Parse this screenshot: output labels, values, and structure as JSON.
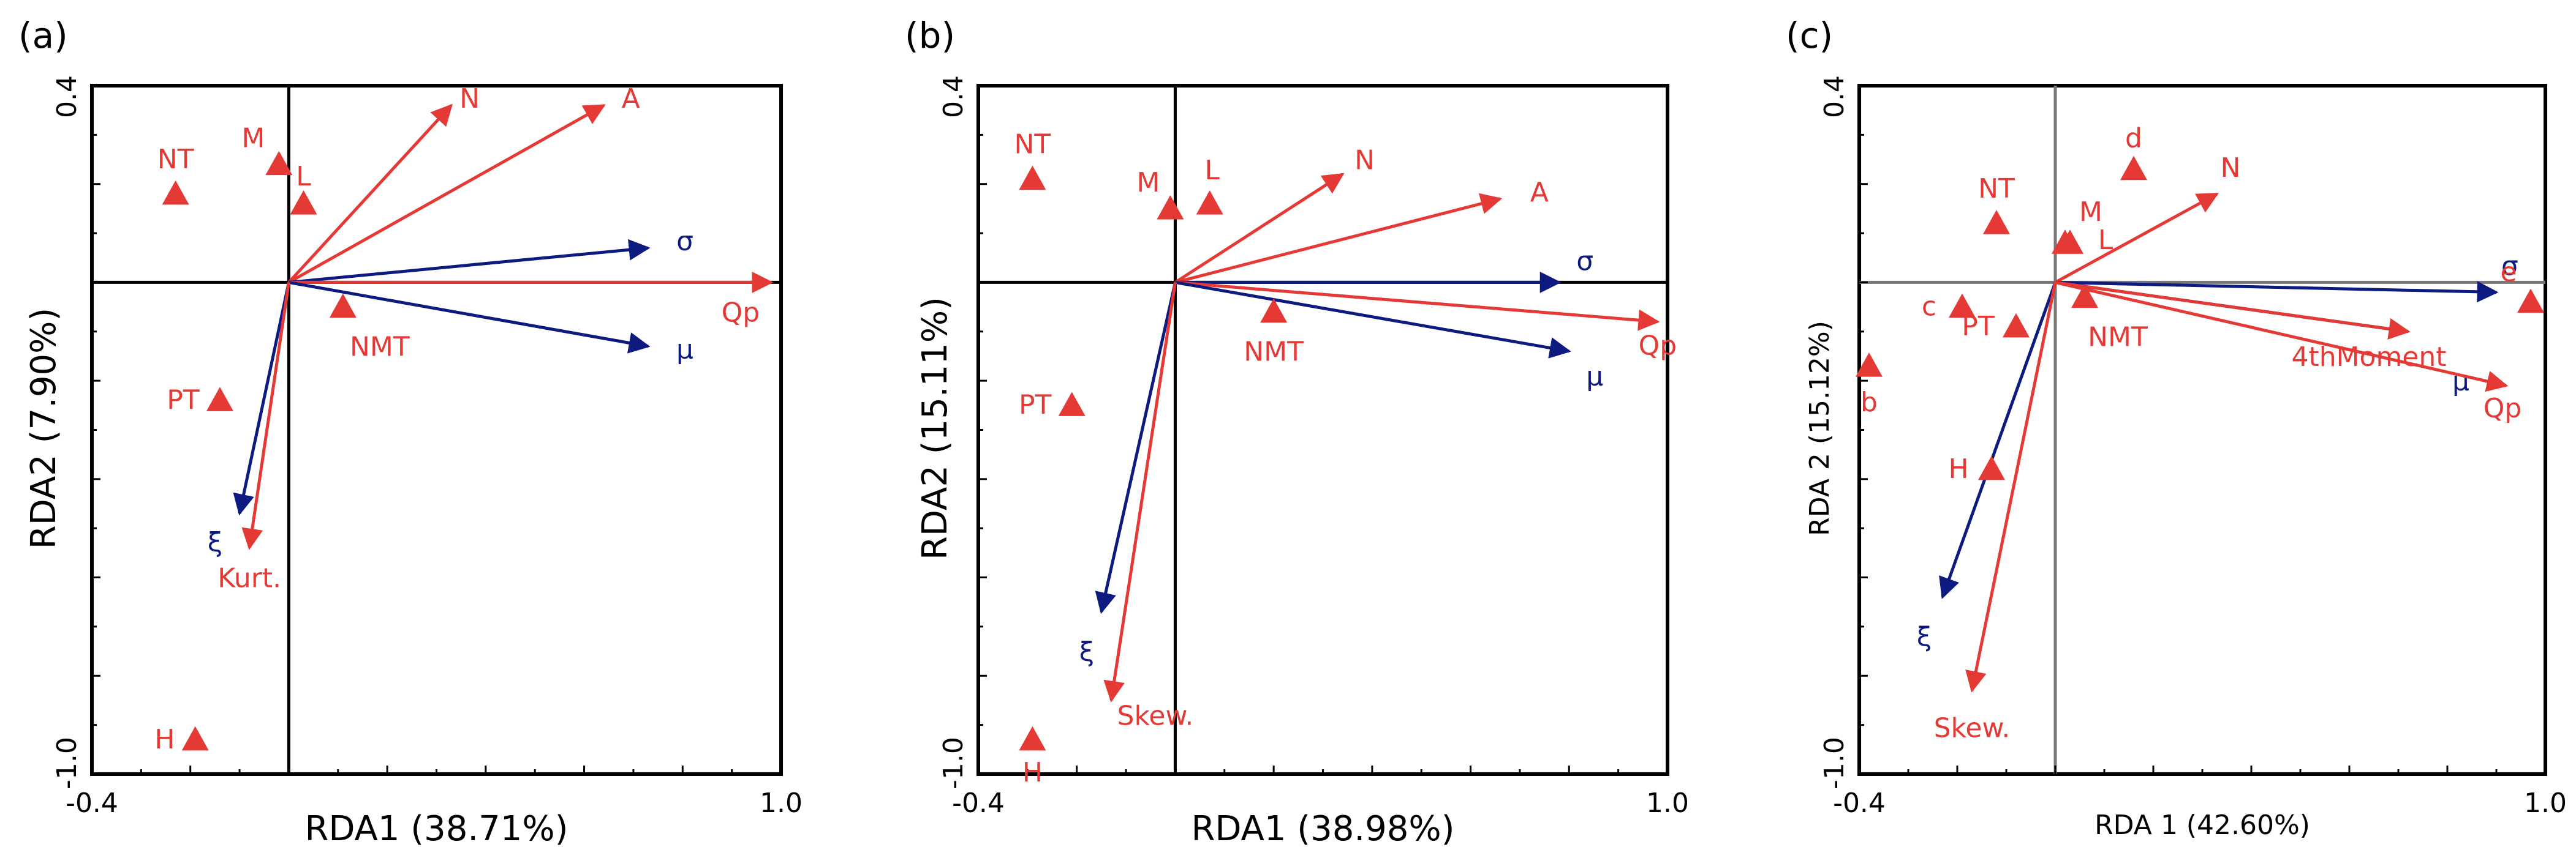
{
  "colors": {
    "red": "#e53935",
    "navy": "#0d1a80",
    "frame": "#000000",
    "grey": "#777777"
  },
  "chart_data": [
    {
      "type": "scatter",
      "panel_label": "(a)",
      "xlabel": "RDA1 (38.71%)",
      "ylabel": "RDA2 (7.90%)",
      "xlim": [
        -0.4,
        1.0
      ],
      "ylim": [
        -1.0,
        0.4
      ],
      "xticks": [
        {
          "value": -0.4,
          "label": "-0.4"
        },
        {
          "value": 1.0,
          "label": "1.0"
        }
      ],
      "yticks": [
        {
          "value": 0.4,
          "label": "0.4"
        },
        {
          "value": -1.0,
          "label": "-1.0"
        }
      ],
      "grid": false,
      "crosshair_color": "black",
      "points": [
        {
          "label": "NT",
          "x": -0.23,
          "y": 0.18
        },
        {
          "label": "M",
          "x": -0.02,
          "y": 0.24
        },
        {
          "label": "L",
          "x": 0.03,
          "y": 0.16
        },
        {
          "label": "NMT",
          "x": 0.11,
          "y": -0.05
        },
        {
          "label": "PT",
          "x": -0.14,
          "y": -0.24
        },
        {
          "label": "H",
          "x": -0.19,
          "y": -0.93
        }
      ],
      "arrows": [
        {
          "label": "N",
          "x": 0.33,
          "y": 0.36,
          "color": "red"
        },
        {
          "label": "A",
          "x": 0.64,
          "y": 0.36,
          "color": "red"
        },
        {
          "label": "σ",
          "x": 0.73,
          "y": 0.07,
          "color": "navy"
        },
        {
          "label": "Qp",
          "x": 0.98,
          "y": 0.0,
          "color": "red"
        },
        {
          "label": "μ",
          "x": 0.73,
          "y": -0.13,
          "color": "navy"
        },
        {
          "label": "ξ",
          "x": -0.1,
          "y": -0.47,
          "color": "navy"
        },
        {
          "label": "Kurt.",
          "x": -0.08,
          "y": -0.54,
          "color": "red"
        }
      ]
    },
    {
      "type": "scatter",
      "panel_label": "(b)",
      "xlabel": "RDA1 (38.98%)",
      "ylabel": "RDA2 (15.11%)",
      "xlim": [
        -0.4,
        1.0
      ],
      "ylim": [
        -1.0,
        0.4
      ],
      "xticks": [
        {
          "value": -0.4,
          "label": "-0.4"
        },
        {
          "value": 1.0,
          "label": "1.0"
        }
      ],
      "yticks": [
        {
          "value": 0.4,
          "label": "0.4"
        },
        {
          "value": -1.0,
          "label": "-1.0"
        }
      ],
      "grid": false,
      "crosshair_color": "black",
      "points": [
        {
          "label": "NT",
          "x": -0.29,
          "y": 0.21
        },
        {
          "label": "M",
          "x": -0.01,
          "y": 0.15
        },
        {
          "label": "L",
          "x": 0.07,
          "y": 0.16
        },
        {
          "label": "NMT",
          "x": 0.2,
          "y": -0.06
        },
        {
          "label": "PT",
          "x": -0.21,
          "y": -0.25
        },
        {
          "label": "H",
          "x": -0.29,
          "y": -0.93
        }
      ],
      "arrows": [
        {
          "label": "N",
          "x": 0.34,
          "y": 0.22,
          "color": "red"
        },
        {
          "label": "A",
          "x": 0.66,
          "y": 0.17,
          "color": "red"
        },
        {
          "label": "σ",
          "x": 0.78,
          "y": 0.0,
          "color": "navy"
        },
        {
          "label": "Qp",
          "x": 0.98,
          "y": -0.08,
          "color": "red"
        },
        {
          "label": "μ",
          "x": 0.8,
          "y": -0.14,
          "color": "navy"
        },
        {
          "label": "ξ",
          "x": -0.15,
          "y": -0.67,
          "color": "navy"
        },
        {
          "label": "Skew.",
          "x": -0.13,
          "y": -0.85,
          "color": "red"
        }
      ]
    },
    {
      "type": "scatter",
      "panel_label": "(c)",
      "xlabel": "RDA 1 (42.60%)",
      "ylabel": "RDA 2 (15.12%)",
      "xlim": [
        -0.4,
        1.0
      ],
      "ylim": [
        -1.0,
        0.4
      ],
      "xticks": [
        {
          "value": -0.4,
          "label": "-0.4"
        },
        {
          "value": 1.0,
          "label": "1.0"
        }
      ],
      "yticks": [
        {
          "value": 0.4,
          "label": "0.4"
        },
        {
          "value": -1.0,
          "label": "-1.0"
        }
      ],
      "grid": false,
      "crosshair_color": "grey",
      "points": [
        {
          "label": "d",
          "x": 0.16,
          "y": 0.23
        },
        {
          "label": "NT",
          "x": -0.12,
          "y": 0.12
        },
        {
          "label": "M",
          "x": 0.02,
          "y": 0.08
        },
        {
          "label": "L",
          "x": 0.03,
          "y": 0.08
        },
        {
          "label": "e",
          "x": 0.97,
          "y": -0.04
        },
        {
          "label": "NMT",
          "x": 0.06,
          "y": -0.03
        },
        {
          "label": "c",
          "x": -0.19,
          "y": -0.05
        },
        {
          "label": "PT",
          "x": -0.08,
          "y": -0.09
        },
        {
          "label": "b",
          "x": -0.38,
          "y": -0.17
        },
        {
          "label": "H",
          "x": -0.13,
          "y": -0.38
        }
      ],
      "arrows": [
        {
          "label": "N",
          "x": 0.33,
          "y": 0.18,
          "color": "red"
        },
        {
          "label": "σ",
          "x": 0.9,
          "y": -0.02,
          "color": "navy"
        },
        {
          "label": "μ",
          "x": 0.72,
          "y": -0.1,
          "color": "navy"
        },
        {
          "label": "Qp",
          "x": 0.92,
          "y": -0.21,
          "color": "red"
        },
        {
          "label": "4thMoment",
          "x": 0.72,
          "y": -0.1,
          "color": "red"
        },
        {
          "label": "ξ",
          "x": -0.23,
          "y": -0.64,
          "color": "navy"
        },
        {
          "label": "Skew.",
          "x": -0.17,
          "y": -0.83,
          "color": "red"
        }
      ]
    }
  ]
}
